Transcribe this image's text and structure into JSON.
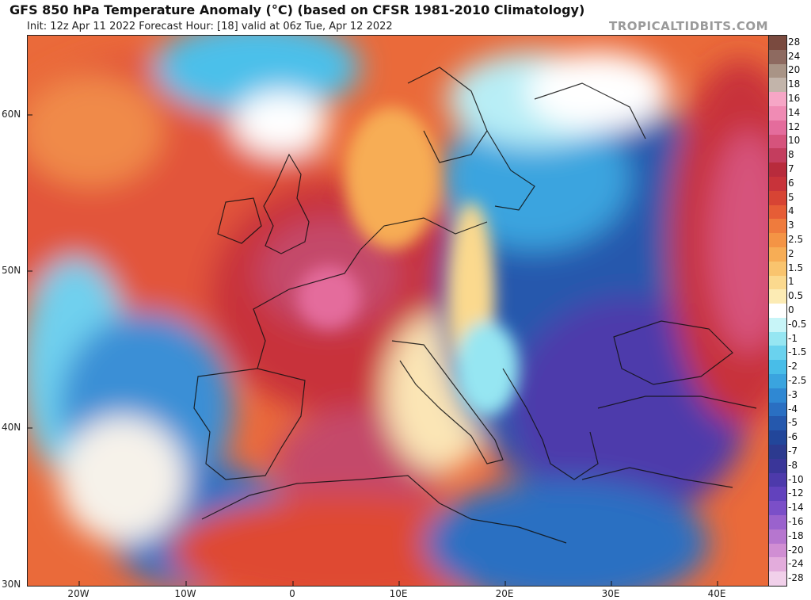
{
  "header": {
    "title": "GFS 850 hPa Temperature Anomaly (°C) (based on CFSR 1981-2010 Climatology)",
    "subtitle": "Init: 12z Apr 11 2022   Forecast Hour: [18]   valid at 06z Tue, Apr 12 2022",
    "brand": "TROPICALTIDBITS.COM"
  },
  "map": {
    "lat_labels": [
      "60N",
      "50N",
      "40N",
      "30N"
    ],
    "lon_labels": [
      "20W",
      "10W",
      "0",
      "10E",
      "20E",
      "30E",
      "40E"
    ]
  },
  "colorbar": {
    "labels": [
      "28",
      "24",
      "20",
      "18",
      "16",
      "14",
      "12",
      "10",
      "8",
      "7",
      "6",
      "5",
      "4",
      "3",
      "2.5",
      "2",
      "1.5",
      "1",
      "0.5",
      "0",
      "-0.5",
      "-1",
      "-1.5",
      "-2",
      "-2.5",
      "-3",
      "-4",
      "-5",
      "-6",
      "-7",
      "-8",
      "-10",
      "-12",
      "-14",
      "-16",
      "-18",
      "-20",
      "-24",
      "-28"
    ],
    "colors": [
      "#7a4a3f",
      "#8e6a60",
      "#a99486",
      "#c2b4aa",
      "#f6a6c6",
      "#f08bb4",
      "#e46c9c",
      "#d6537c",
      "#c43d5e",
      "#b82b3c",
      "#c8333a",
      "#d74434",
      "#e65d36",
      "#ef7b3d",
      "#f49445",
      "#f7ad55",
      "#f9c46e",
      "#fbd98e",
      "#fcebb4",
      "#ffffff",
      "#c8f5f8",
      "#96e6f2",
      "#6ad2ee",
      "#48bde8",
      "#3aa4df",
      "#2f88d3",
      "#2a6fc2",
      "#2558ad",
      "#22469a",
      "#2c3a8f",
      "#3a3699",
      "#4d3aab",
      "#6242bd",
      "#7b4fc8",
      "#9a62cd",
      "#b676cf",
      "#d08ed3",
      "#e3acdc",
      "#f1d0ea"
    ]
  }
}
